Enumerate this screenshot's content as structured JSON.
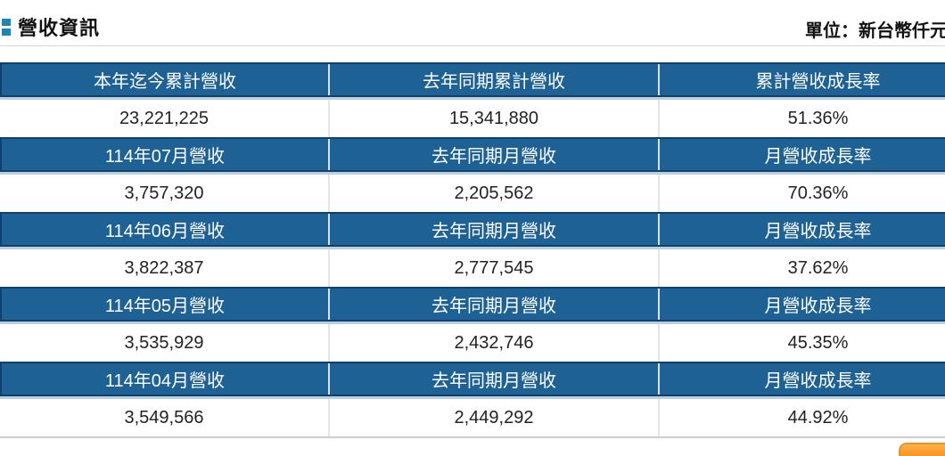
{
  "header": {
    "title": "營收資訊",
    "unit": "單位：新台幣仟元"
  },
  "table": {
    "groups": [
      {
        "headers": [
          "本年迄今累計營收",
          "去年同期累計營收",
          "累計營收成長率"
        ],
        "values": [
          "23,221,225",
          "15,341,880",
          "51.36%"
        ]
      },
      {
        "headers": [
          "114年07月營收",
          "去年同期月營收",
          "月營收成長率"
        ],
        "values": [
          "3,757,320",
          "2,205,562",
          "70.36%"
        ]
      },
      {
        "headers": [
          "114年06月營收",
          "去年同期月營收",
          "月營收成長率"
        ],
        "values": [
          "3,822,387",
          "2,777,545",
          "37.62%"
        ]
      },
      {
        "headers": [
          "114年05月營收",
          "去年同期月營收",
          "月營收成長率"
        ],
        "values": [
          "3,535,929",
          "2,432,746",
          "45.35%"
        ]
      },
      {
        "headers": [
          "114年04月營收",
          "去年同期月營收",
          "月營收成長率"
        ],
        "values": [
          "3,549,566",
          "2,449,292",
          "44.92%"
        ]
      }
    ]
  },
  "colors": {
    "header_bg": "#1d6195",
    "header_border": "#10406b",
    "header_underline": "#b9cedf",
    "title_bullet": "#1c85b8",
    "button_orange_top": "#fcb04a",
    "button_orange_bottom": "#f27c00"
  }
}
